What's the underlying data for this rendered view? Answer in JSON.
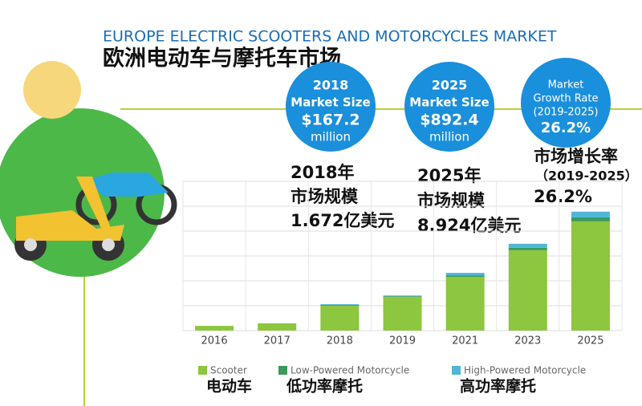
{
  "header": {
    "title_en": "EUROPE ELECTRIC SCOOTERS AND MOTORCYCLES MARKET",
    "title_zh": "欧洲电动车与摩托车市场"
  },
  "stats": [
    {
      "lines": [
        "2018",
        "Market Size",
        "$167.2",
        "million"
      ]
    },
    {
      "lines": [
        "2025",
        "Market Size",
        "$892.4",
        "million"
      ]
    },
    {
      "lines": [
        "Market",
        "Growth Rate",
        "(2019-2025)",
        "26.2%"
      ]
    }
  ],
  "notes": [
    {
      "lines": [
        "2018年",
        "市场规模",
        "1.672亿美元"
      ]
    },
    {
      "lines": [
        "2025年",
        "市场规模",
        "8.924亿美元"
      ]
    },
    {
      "lines": [
        "市场增长率",
        "（2019-2025）",
        "26.2%"
      ]
    }
  ],
  "chart_data": {
    "type": "bar",
    "stacked": true,
    "categories": [
      "2016",
      "2017",
      "2018",
      "2019",
      "2021",
      "2023",
      "2025"
    ],
    "series": [
      {
        "name": "Scooter",
        "name_zh": "电动车",
        "color": "#8dc63f",
        "values": [
          0.19,
          0.29,
          1.0,
          1.35,
          2.16,
          3.23,
          4.39
        ]
      },
      {
        "name": "Low-Powered Motorcycle",
        "name_zh": "低功率摩托",
        "color": "#3a9a5b",
        "values": [
          0,
          0,
          0.03,
          0.03,
          0.06,
          0.1,
          0.16
        ]
      },
      {
        "name": "High-Powered Motorcycle",
        "name_zh": "高功率摩托",
        "color": "#4fb6d8",
        "values": [
          0,
          0,
          0.03,
          0.03,
          0.1,
          0.16,
          0.23
        ]
      }
    ],
    "ylim": [
      0,
      6
    ],
    "yticks": [
      0,
      1,
      2,
      3,
      4,
      5,
      6
    ],
    "grid": true
  }
}
